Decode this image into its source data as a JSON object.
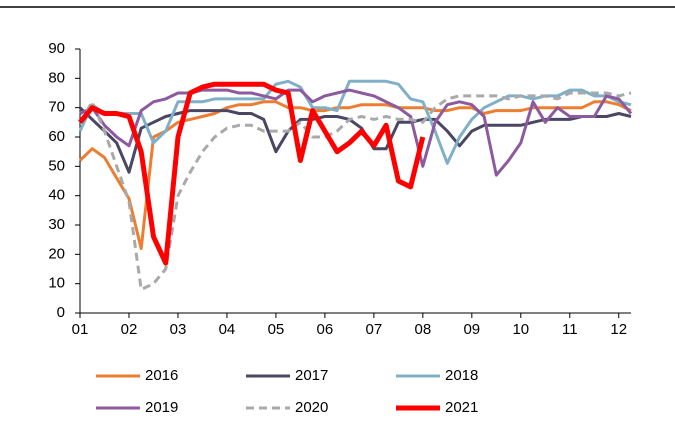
{
  "chart_data": {
    "type": "line",
    "x": [
      1,
      1.25,
      1.5,
      1.75,
      2,
      2.25,
      2.5,
      2.75,
      3,
      3.25,
      3.5,
      3.75,
      4,
      4.25,
      4.5,
      4.75,
      5,
      5.25,
      5.5,
      5.75,
      6,
      6.25,
      6.5,
      6.75,
      7,
      7.25,
      7.5,
      7.75,
      8,
      8.25,
      8.5,
      8.75,
      9,
      9.25,
      9.5,
      9.75,
      10,
      10.25,
      10.5,
      10.75,
      11,
      11.25,
      11.5,
      11.75,
      12,
      12.25
    ],
    "xlim": [
      1,
      12.25
    ],
    "xticks": [
      {
        "value": 1,
        "label": "01"
      },
      {
        "value": 2,
        "label": "02"
      },
      {
        "value": 3,
        "label": "03"
      },
      {
        "value": 4,
        "label": "04"
      },
      {
        "value": 5,
        "label": "05"
      },
      {
        "value": 6,
        "label": "06"
      },
      {
        "value": 7,
        "label": "07"
      },
      {
        "value": 8,
        "label": "08"
      },
      {
        "value": 9,
        "label": "09"
      },
      {
        "value": 10,
        "label": "10"
      },
      {
        "value": 11,
        "label": "11"
      },
      {
        "value": 12,
        "label": "12"
      }
    ],
    "ylim": [
      0,
      90
    ],
    "yticks": [
      0,
      10,
      20,
      30,
      40,
      50,
      60,
      70,
      80,
      90
    ],
    "series": [
      {
        "name": "2016",
        "color": "#ed7d31",
        "linewidth": 3,
        "line_style": "solid",
        "values": [
          52,
          56,
          53,
          46,
          39,
          22,
          60,
          62,
          65,
          66,
          67,
          68,
          70,
          71,
          71,
          72,
          72,
          70,
          70,
          69,
          69,
          70,
          70,
          71,
          71,
          71,
          70,
          70,
          70,
          69,
          69,
          70,
          70,
          68,
          69,
          69,
          69,
          70,
          70,
          70,
          70,
          70,
          72,
          72,
          71,
          69
        ]
      },
      {
        "name": "2017",
        "color": "#4a4765",
        "linewidth": 3,
        "line_style": "solid",
        "values": [
          70,
          66,
          62,
          58,
          48,
          63,
          65,
          67,
          68,
          69,
          69,
          69,
          69,
          68,
          68,
          66,
          55,
          62,
          66,
          66,
          67,
          67,
          66,
          63,
          56,
          56,
          65,
          65,
          66,
          66,
          62,
          57,
          62,
          64,
          64,
          64,
          64,
          65,
          66,
          66,
          66,
          67,
          67,
          67,
          68,
          67
        ]
      },
      {
        "name": "2018",
        "color": "#7fb0c8",
        "linewidth": 3,
        "line_style": "solid",
        "values": [
          62,
          71,
          68,
          68,
          68,
          68,
          58,
          62,
          72,
          72,
          72,
          73,
          73,
          73,
          73,
          73,
          78,
          79,
          77,
          70,
          70,
          69,
          79,
          79,
          79,
          79,
          78,
          73,
          72,
          62,
          51,
          60,
          66,
          70,
          72,
          74,
          74,
          73,
          74,
          74,
          76,
          76,
          74,
          74,
          72,
          71
        ]
      },
      {
        "name": "2019",
        "color": "#8c5a9e",
        "linewidth": 3,
        "line_style": "solid",
        "values": [
          68,
          70,
          64,
          60,
          57,
          69,
          72,
          73,
          75,
          75,
          76,
          76,
          76,
          75,
          75,
          74,
          73,
          76,
          76,
          72,
          74,
          75,
          76,
          75,
          74,
          72,
          70,
          67,
          50,
          65,
          71,
          72,
          71,
          67,
          47,
          52,
          58,
          72,
          65,
          70,
          67,
          67,
          67,
          74,
          73,
          68
        ]
      },
      {
        "name": "2020",
        "color": "#a9a9a9",
        "linewidth": 3,
        "line_style": "dashed",
        "values": [
          65,
          72,
          62,
          50,
          38,
          8,
          10,
          15,
          40,
          48,
          55,
          60,
          63,
          64,
          64,
          62,
          62,
          62,
          65,
          60,
          60,
          62,
          66,
          67,
          66,
          67,
          66,
          66,
          65,
          70,
          73,
          74,
          74,
          74,
          74,
          73,
          74,
          74,
          74,
          73,
          75,
          75,
          75,
          75,
          74,
          75
        ]
      },
      {
        "name": "2021",
        "color": "#ff0000",
        "linewidth": 5,
        "line_style": "solid",
        "values": [
          65,
          70,
          68,
          68,
          67,
          55,
          26,
          17,
          60,
          75,
          77,
          78,
          78,
          78,
          78,
          78,
          76,
          75,
          52,
          69,
          62,
          55,
          58,
          62,
          57,
          64,
          45,
          43,
          60,
          null,
          null,
          null,
          null,
          null,
          null,
          null,
          null,
          null,
          null,
          null,
          null,
          null,
          null,
          null,
          null,
          null
        ]
      }
    ]
  }
}
